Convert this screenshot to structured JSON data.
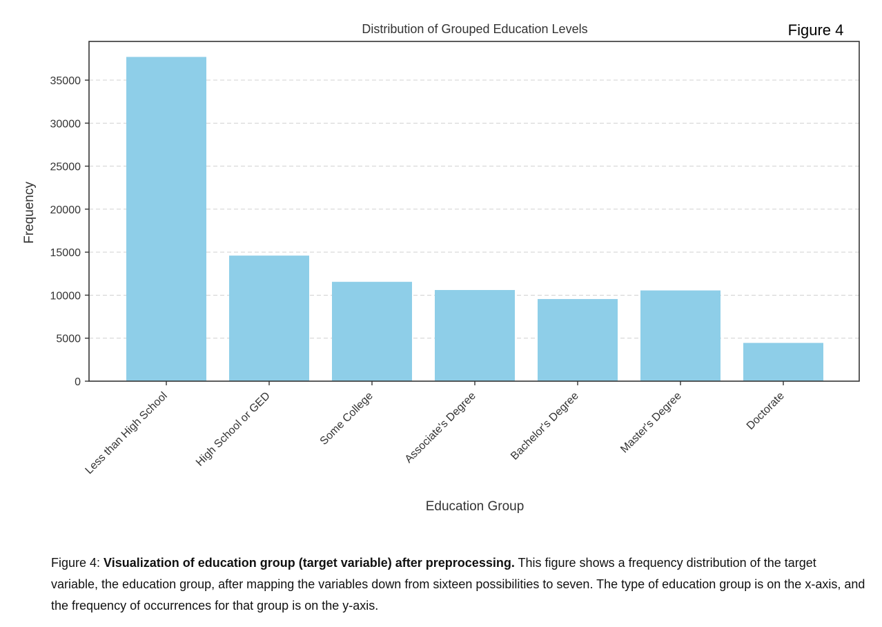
{
  "figure_tag": "Figure 4",
  "chart_data": {
    "type": "bar",
    "title": "Distribution of Grouped Education Levels",
    "xlabel": "Education Group",
    "ylabel": "Frequency",
    "categories": [
      "Less than High School",
      "High School or GED",
      "Some College",
      "Associate's Degree",
      "Bachelor's Degree",
      "Master's Degree",
      "Doctorate"
    ],
    "values": [
      37700,
      14600,
      11550,
      10600,
      9550,
      10550,
      4450
    ],
    "ylim": [
      0,
      39500
    ],
    "yticks": [
      0,
      5000,
      10000,
      15000,
      20000,
      25000,
      30000,
      35000
    ],
    "grid": "y dashed",
    "bar_color": "#8ecee8"
  },
  "caption": {
    "prefix": "Figure 4: ",
    "bold": "Visualization of education group (target variable) after preprocessing.",
    "text": " This figure shows a frequency distribution of the target variable, the education group, after mapping the variables down from sixteen possibilities to seven. The type of education group is on the x-axis, and the frequency of occurrences for that group is on the y-axis."
  }
}
